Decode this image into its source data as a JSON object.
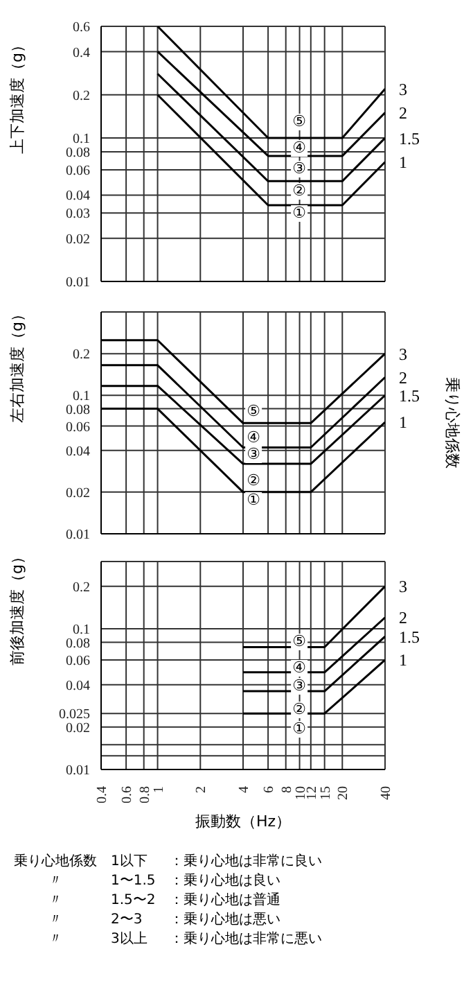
{
  "chart_data": [
    {
      "type": "line",
      "ylabel": "上下加速度（g）",
      "log": "xy",
      "grid": true,
      "tick_labels": "y",
      "xlim": [
        0.4,
        40
      ],
      "xticks": [
        0.4,
        0.6,
        0.8,
        1,
        2,
        4,
        6,
        8,
        10,
        12,
        15,
        20,
        40
      ],
      "ylim": [
        0.01,
        0.6
      ],
      "yticks": [
        0.01,
        0.02,
        0.03,
        0.04,
        0.06,
        0.08,
        0.1,
        0.2,
        0.4,
        0.6
      ],
      "series": [
        {
          "name": "3",
          "color": "#000000",
          "x": [
            1,
            6,
            20,
            40
          ],
          "values": [
            0.6,
            0.1,
            0.1,
            0.22
          ]
        },
        {
          "name": "2",
          "color": "#000000",
          "x": [
            1,
            6,
            20,
            40
          ],
          "values": [
            0.4,
            0.075,
            0.075,
            0.15
          ]
        },
        {
          "name": "1.5",
          "color": "#000000",
          "x": [
            1,
            6,
            20,
            40
          ],
          "values": [
            0.28,
            0.05,
            0.05,
            0.1
          ]
        },
        {
          "name": "1",
          "color": "#000000",
          "x": [
            1,
            6,
            20,
            40
          ],
          "values": [
            0.2,
            0.034,
            0.034,
            0.068
          ]
        }
      ],
      "annotations": [
        "⑤",
        "④",
        "③",
        "②",
        "①"
      ]
    },
    {
      "type": "line",
      "ylabel": "左右加速度（g）",
      "y2label": "乗り心地係数",
      "log": "xy",
      "grid": true,
      "tick_labels": "y",
      "xlim": [
        0.4,
        40
      ],
      "xticks": [
        0.4,
        0.6,
        0.8,
        1,
        2,
        4,
        6,
        8,
        10,
        12,
        15,
        20,
        40
      ],
      "ylim": [
        0.01,
        0.4
      ],
      "yticks": [
        0.01,
        0.02,
        0.04,
        0.06,
        0.08,
        0.1,
        0.2
      ],
      "series": [
        {
          "name": "3",
          "color": "#000000",
          "x": [
            0.4,
            1,
            4,
            12,
            40
          ],
          "values": [
            0.25,
            0.25,
            0.063,
            0.063,
            0.2
          ]
        },
        {
          "name": "2",
          "color": "#000000",
          "x": [
            0.4,
            1,
            4,
            12,
            40
          ],
          "values": [
            0.165,
            0.165,
            0.042,
            0.042,
            0.135
          ]
        },
        {
          "name": "1.5",
          "color": "#000000",
          "x": [
            0.4,
            1,
            4,
            12,
            40
          ],
          "values": [
            0.117,
            0.117,
            0.032,
            0.032,
            0.1
          ]
        },
        {
          "name": "1",
          "color": "#000000",
          "x": [
            0.4,
            1,
            4,
            12,
            40
          ],
          "values": [
            0.08,
            0.08,
            0.02,
            0.02,
            0.064
          ]
        }
      ],
      "annotations": [
        "⑤",
        "④",
        "③",
        "②",
        "①"
      ]
    },
    {
      "type": "line",
      "ylabel": "前後加速度（g）",
      "xlabel": "振動数（Hz）",
      "log": "xy",
      "grid": true,
      "xlim": [
        0.4,
        40
      ],
      "xticks": [
        0.4,
        0.6,
        0.8,
        1,
        2,
        4,
        6,
        8,
        10,
        12,
        15,
        20,
        40
      ],
      "ylim": [
        0.01,
        0.3
      ],
      "yticks": [
        0.01,
        {
          "value": 0.0125,
          "label": null
        },
        {
          "value": 0.015,
          "label": null
        },
        0.02,
        0.025,
        0.04,
        0.06,
        0.08,
        0.1,
        0.2
      ],
      "series": [
        {
          "name": "3",
          "color": "#000000",
          "x": [
            4,
            15,
            40
          ],
          "values": [
            0.074,
            0.074,
            0.2
          ]
        },
        {
          "name": "2",
          "color": "#000000",
          "x": [
            4,
            15,
            40
          ],
          "values": [
            0.049,
            0.049,
            0.12
          ]
        },
        {
          "name": "1.5",
          "color": "#000000",
          "x": [
            4,
            15,
            40
          ],
          "values": [
            0.036,
            0.036,
            0.088
          ]
        },
        {
          "name": "1",
          "color": "#000000",
          "x": [
            4,
            15,
            40
          ],
          "values": [
            0.025,
            0.025,
            0.06
          ]
        }
      ],
      "annotations": [
        "⑤",
        "④",
        "③",
        "②",
        "①",
        "乗り心地係数  1以下  ：乗り心地は非常に良い",
        "〃  1〜1.5  ：乗り心地は良い",
        "〃  1.5〜2  ：乗り心地は普通",
        "〃  2〜3  ：乗り心地は悪い",
        "〃  3以上  ：乗り心地は非常に悪い"
      ]
    }
  ]
}
